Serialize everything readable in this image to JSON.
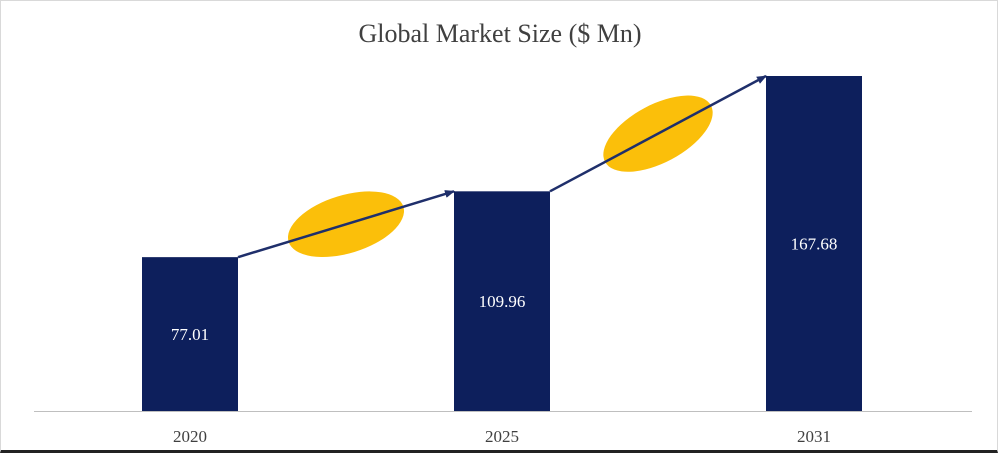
{
  "chart_data": {
    "type": "bar",
    "title": "Global Market Size ($ Mn)",
    "categories": [
      "2020",
      "2025",
      "2031"
    ],
    "values": [
      77.01,
      109.96,
      167.68
    ],
    "value_labels": [
      "77.01",
      "109.96",
      "167.68"
    ],
    "xlabel": "",
    "ylabel": "",
    "ylim": [
      0,
      167.68
    ],
    "grid": false,
    "legend": "none",
    "colors": {
      "bar": "#0d1f5c",
      "arrow": "#1f2f6b",
      "growth_marker": "#fbbf0a",
      "axis": "#bfbfbf"
    }
  }
}
